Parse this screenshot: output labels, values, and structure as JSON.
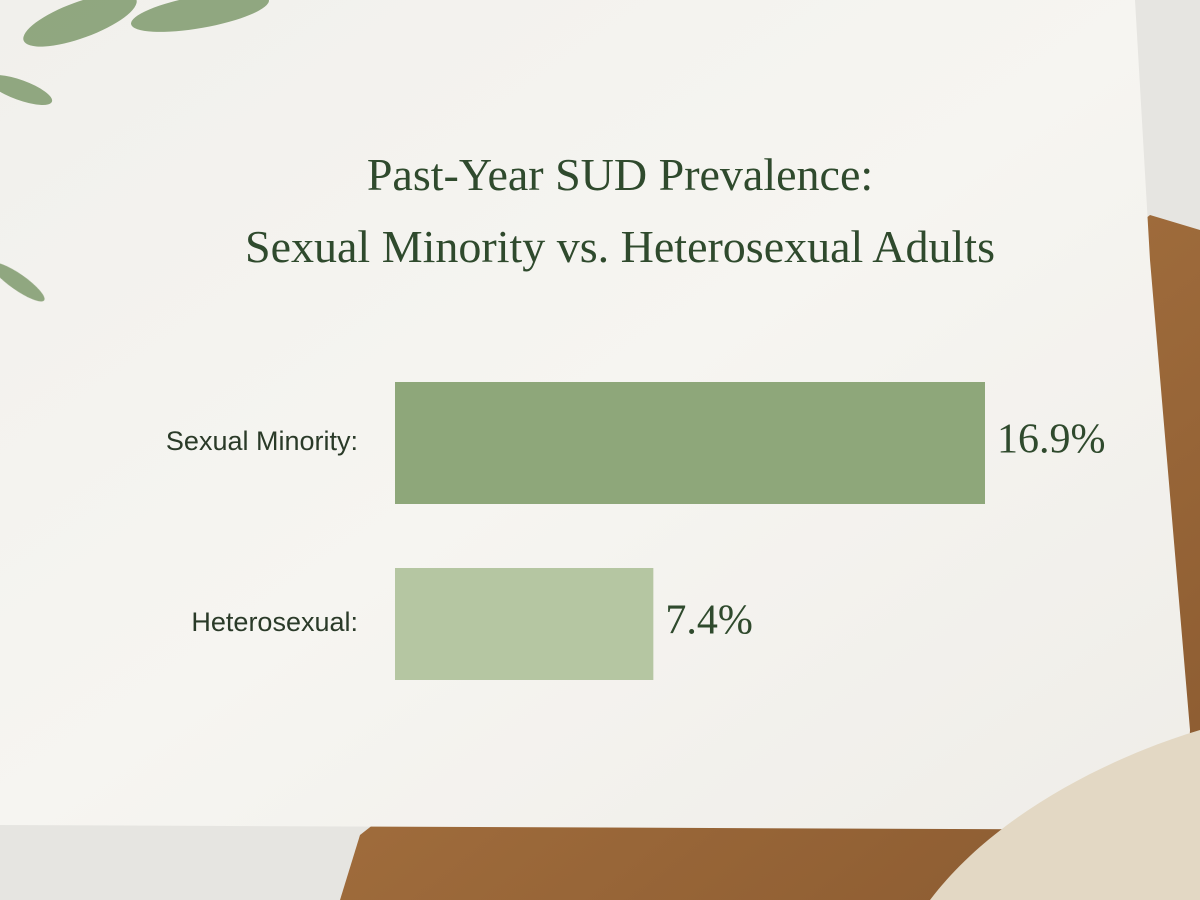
{
  "chart_data": {
    "type": "bar",
    "orientation": "horizontal",
    "title": [
      "Past-Year SUD Prevalence:",
      "Sexual Minority vs. Heterosexual Adults"
    ],
    "categories": [
      "Sexual Minority:",
      "Heterosexual:"
    ],
    "values": [
      16.9,
      7.4
    ],
    "value_labels": [
      "16.9%",
      "7.4%"
    ],
    "colors": [
      "#8ea77a",
      "#b5c6a2"
    ]
  }
}
